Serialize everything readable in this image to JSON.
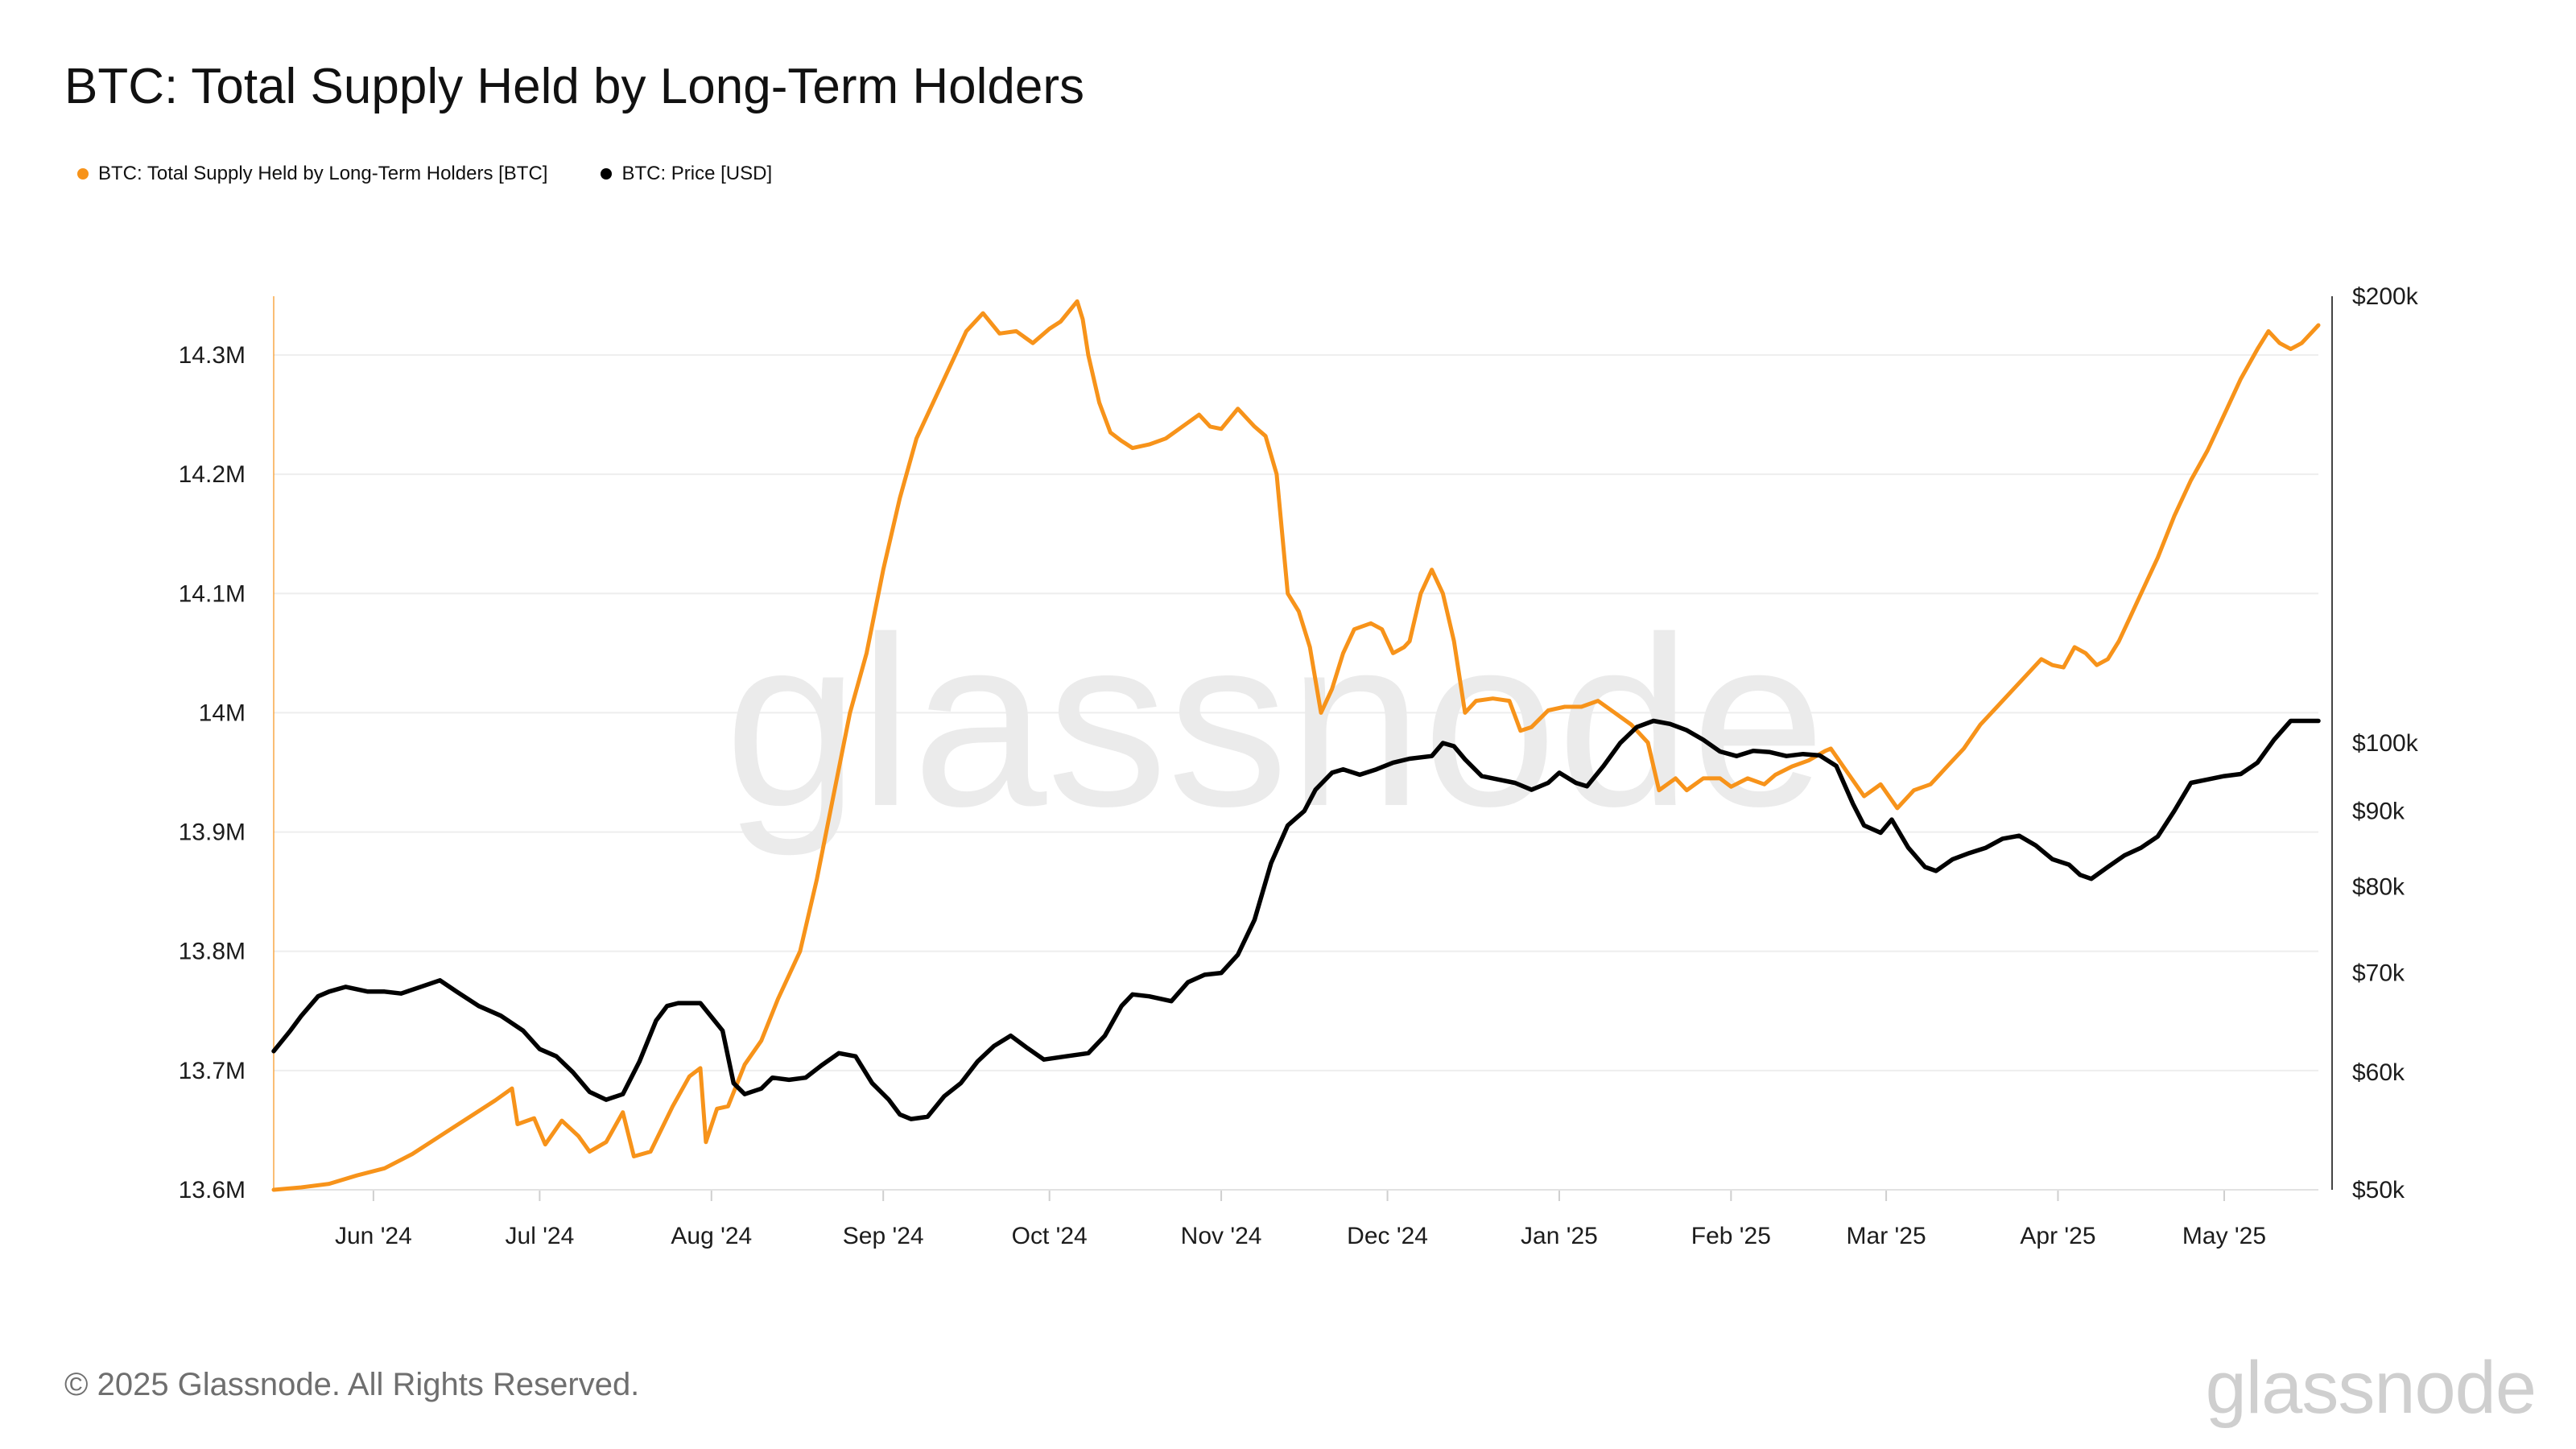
{
  "title": "BTC: Total Supply Held by Long-Term Holders",
  "legend": [
    {
      "label": "BTC: Total Supply Held by Long-Term Holders [BTC]",
      "color": "#f7931a"
    },
    {
      "label": "BTC: Price [USD]",
      "color": "#000000"
    }
  ],
  "footer": "© 2025 Glassnode. All Rights Reserved.",
  "brand": "glassnode",
  "watermark": "glassnode",
  "chart_data": {
    "type": "line",
    "x_ticks": [
      "Jun '24",
      "Jul '24",
      "Aug '24",
      "Sep '24",
      "Oct '24",
      "Nov '24",
      "Dec '24",
      "Jan '25",
      "Feb '25",
      "Mar '25",
      "Apr '25",
      "May '25"
    ],
    "x_tick_days": [
      13,
      43,
      74,
      105,
      135,
      166,
      196,
      227,
      258,
      286,
      317,
      347
    ],
    "x_range_days": [
      -5,
      364
    ],
    "y_left": {
      "ticks": [
        "13.6M",
        "13.7M",
        "13.8M",
        "13.9M",
        "14M",
        "14.1M",
        "14.2M",
        "14.3M"
      ],
      "tick_values": [
        13.6,
        13.7,
        13.8,
        13.9,
        14.0,
        14.1,
        14.2,
        14.3
      ],
      "range": [
        13.6,
        14.3
      ],
      "unit": "BTC (millions)"
    },
    "y_right": {
      "scale": "log",
      "ticks": [
        "$50k",
        "$60k",
        "$70k",
        "$80k",
        "$90k",
        "$100k",
        "$200k"
      ],
      "tick_values": [
        50,
        60,
        70,
        80,
        90,
        100,
        200
      ],
      "range": [
        50,
        200
      ],
      "unit": "USD (thousands)"
    },
    "grid": true,
    "legend_position": "top-left",
    "series": [
      {
        "name": "BTC: Total Supply Held by Long-Term Holders [BTC]",
        "color": "#f7931a",
        "axis": "left",
        "points": [
          [
            -5,
            13.6
          ],
          [
            0,
            13.602
          ],
          [
            5,
            13.605
          ],
          [
            10,
            13.612
          ],
          [
            15,
            13.618
          ],
          [
            20,
            13.63
          ],
          [
            25,
            13.645
          ],
          [
            30,
            13.66
          ],
          [
            35,
            13.675
          ],
          [
            38,
            13.685
          ],
          [
            39,
            13.655
          ],
          [
            42,
            13.66
          ],
          [
            44,
            13.638
          ],
          [
            47,
            13.658
          ],
          [
            50,
            13.645
          ],
          [
            52,
            13.632
          ],
          [
            55,
            13.64
          ],
          [
            58,
            13.665
          ],
          [
            60,
            13.628
          ],
          [
            63,
            13.632
          ],
          [
            67,
            13.67
          ],
          [
            70,
            13.695
          ],
          [
            72,
            13.702
          ],
          [
            73,
            13.64
          ],
          [
            75,
            13.668
          ],
          [
            77,
            13.67
          ],
          [
            80,
            13.705
          ],
          [
            83,
            13.725
          ],
          [
            86,
            13.76
          ],
          [
            90,
            13.8
          ],
          [
            93,
            13.86
          ],
          [
            96,
            13.93
          ],
          [
            99,
            14.0
          ],
          [
            102,
            14.05
          ],
          [
            105,
            14.12
          ],
          [
            108,
            14.18
          ],
          [
            111,
            14.23
          ],
          [
            114,
            14.26
          ],
          [
            117,
            14.29
          ],
          [
            120,
            14.32
          ],
          [
            123,
            14.335
          ],
          [
            126,
            14.318
          ],
          [
            129,
            14.32
          ],
          [
            132,
            14.31
          ],
          [
            135,
            14.322
          ],
          [
            137,
            14.328
          ],
          [
            140,
            14.345
          ],
          [
            141,
            14.33
          ],
          [
            142,
            14.3
          ],
          [
            144,
            14.26
          ],
          [
            146,
            14.235
          ],
          [
            148,
            14.228
          ],
          [
            150,
            14.222
          ],
          [
            153,
            14.225
          ],
          [
            156,
            14.23
          ],
          [
            159,
            14.24
          ],
          [
            162,
            14.25
          ],
          [
            164,
            14.24
          ],
          [
            166,
            14.238
          ],
          [
            169,
            14.255
          ],
          [
            172,
            14.24
          ],
          [
            174,
            14.232
          ],
          [
            176,
            14.2
          ],
          [
            178,
            14.1
          ],
          [
            180,
            14.085
          ],
          [
            182,
            14.055
          ],
          [
            184,
            14.0
          ],
          [
            186,
            14.02
          ],
          [
            188,
            14.05
          ],
          [
            190,
            14.07
          ],
          [
            193,
            14.075
          ],
          [
            195,
            14.07
          ],
          [
            197,
            14.05
          ],
          [
            199,
            14.055
          ],
          [
            200,
            14.06
          ],
          [
            202,
            14.1
          ],
          [
            204,
            14.12
          ],
          [
            206,
            14.1
          ],
          [
            208,
            14.06
          ],
          [
            210,
            14.0
          ],
          [
            212,
            14.01
          ],
          [
            215,
            14.012
          ],
          [
            218,
            14.01
          ],
          [
            220,
            13.985
          ],
          [
            222,
            13.988
          ],
          [
            225,
            14.002
          ],
          [
            228,
            14.005
          ],
          [
            231,
            14.005
          ],
          [
            234,
            14.01
          ],
          [
            237,
            14.0
          ],
          [
            240,
            13.99
          ],
          [
            243,
            13.975
          ],
          [
            245,
            13.935
          ],
          [
            248,
            13.945
          ],
          [
            250,
            13.935
          ],
          [
            253,
            13.945
          ],
          [
            256,
            13.945
          ],
          [
            258,
            13.938
          ],
          [
            261,
            13.945
          ],
          [
            264,
            13.94
          ],
          [
            266,
            13.948
          ],
          [
            269,
            13.955
          ],
          [
            272,
            13.96
          ],
          [
            275,
            13.968
          ],
          [
            276,
            13.97
          ],
          [
            279,
            13.95
          ],
          [
            282,
            13.93
          ],
          [
            285,
            13.94
          ],
          [
            288,
            13.92
          ],
          [
            291,
            13.935
          ],
          [
            294,
            13.94
          ],
          [
            297,
            13.955
          ],
          [
            300,
            13.97
          ],
          [
            303,
            13.99
          ],
          [
            306,
            14.005
          ],
          [
            309,
            14.02
          ],
          [
            312,
            14.035
          ],
          [
            314,
            14.045
          ],
          [
            316,
            14.04
          ],
          [
            318,
            14.038
          ],
          [
            320,
            14.055
          ],
          [
            322,
            14.05
          ],
          [
            324,
            14.04
          ],
          [
            326,
            14.045
          ],
          [
            328,
            14.06
          ],
          [
            330,
            14.08
          ],
          [
            332,
            14.1
          ],
          [
            335,
            14.13
          ],
          [
            338,
            14.165
          ],
          [
            341,
            14.195
          ],
          [
            344,
            14.22
          ],
          [
            347,
            14.25
          ],
          [
            350,
            14.28
          ],
          [
            353,
            14.305
          ],
          [
            355,
            14.32
          ],
          [
            357,
            14.31
          ],
          [
            359,
            14.305
          ],
          [
            361,
            14.31
          ],
          [
            363,
            14.32
          ],
          [
            364,
            14.325
          ]
        ]
      },
      {
        "name": "BTC: Price [USD]",
        "color": "#000000",
        "axis": "right",
        "points": [
          [
            -5,
            62
          ],
          [
            -2,
            64
          ],
          [
            0,
            65.5
          ],
          [
            3,
            67.5
          ],
          [
            5,
            68
          ],
          [
            8,
            68.5
          ],
          [
            12,
            68
          ],
          [
            15,
            68
          ],
          [
            18,
            67.8
          ],
          [
            22,
            68.6
          ],
          [
            25,
            69.2
          ],
          [
            28,
            68
          ],
          [
            32,
            66.5
          ],
          [
            36,
            65.5
          ],
          [
            40,
            64
          ],
          [
            43,
            62.2
          ],
          [
            46,
            61.5
          ],
          [
            49,
            60
          ],
          [
            52,
            58.2
          ],
          [
            55,
            57.5
          ],
          [
            58,
            58
          ],
          [
            61,
            61
          ],
          [
            64,
            65
          ],
          [
            66,
            66.5
          ],
          [
            68,
            66.8
          ],
          [
            72,
            66.8
          ],
          [
            76,
            64
          ],
          [
            78,
            59
          ],
          [
            80,
            58
          ],
          [
            83,
            58.5
          ],
          [
            85,
            59.5
          ],
          [
            88,
            59.3
          ],
          [
            91,
            59.5
          ],
          [
            94,
            60.7
          ],
          [
            97,
            61.8
          ],
          [
            100,
            61.5
          ],
          [
            103,
            59
          ],
          [
            106,
            57.5
          ],
          [
            108,
            56.2
          ],
          [
            110,
            55.8
          ],
          [
            113,
            56
          ],
          [
            116,
            57.8
          ],
          [
            119,
            59
          ],
          [
            122,
            61
          ],
          [
            125,
            62.5
          ],
          [
            128,
            63.5
          ],
          [
            131,
            62.3
          ],
          [
            134,
            61.2
          ],
          [
            138,
            61.5
          ],
          [
            142,
            61.8
          ],
          [
            145,
            63.5
          ],
          [
            148,
            66.5
          ],
          [
            150,
            67.7
          ],
          [
            153,
            67.5
          ],
          [
            157,
            67
          ],
          [
            160,
            69
          ],
          [
            163,
            69.8
          ],
          [
            166,
            70
          ],
          [
            169,
            72
          ],
          [
            172,
            76
          ],
          [
            175,
            83
          ],
          [
            178,
            88
          ],
          [
            181,
            90
          ],
          [
            183,
            93
          ],
          [
            186,
            95.5
          ],
          [
            188,
            96
          ],
          [
            191,
            95.2
          ],
          [
            194,
            96
          ],
          [
            197,
            97
          ],
          [
            200,
            97.6
          ],
          [
            204,
            98
          ],
          [
            206,
            100
          ],
          [
            208,
            99.5
          ],
          [
            210,
            97.5
          ],
          [
            213,
            95
          ],
          [
            216,
            94.5
          ],
          [
            219,
            94
          ],
          [
            222,
            93
          ],
          [
            225,
            94
          ],
          [
            227,
            95.5
          ],
          [
            230,
            94
          ],
          [
            232,
            93.5
          ],
          [
            235,
            96.5
          ],
          [
            238,
            100
          ],
          [
            241,
            102.5
          ],
          [
            244,
            103.5
          ],
          [
            247,
            103
          ],
          [
            250,
            102
          ],
          [
            253,
            100.5
          ],
          [
            256,
            98.7
          ],
          [
            259,
            98
          ],
          [
            262,
            98.8
          ],
          [
            265,
            98.6
          ],
          [
            268,
            98
          ],
          [
            271,
            98.3
          ],
          [
            274,
            98.1
          ],
          [
            277,
            96.5
          ],
          [
            280,
            91
          ],
          [
            282,
            88
          ],
          [
            285,
            87
          ],
          [
            287,
            88.8
          ],
          [
            290,
            85
          ],
          [
            293,
            82.5
          ],
          [
            295,
            82
          ],
          [
            298,
            83.5
          ],
          [
            301,
            84.3
          ],
          [
            304,
            85
          ],
          [
            307,
            86.2
          ],
          [
            310,
            86.6
          ],
          [
            313,
            85.3
          ],
          [
            316,
            83.5
          ],
          [
            319,
            82.8
          ],
          [
            321,
            81.5
          ],
          [
            323,
            81
          ],
          [
            326,
            82.5
          ],
          [
            329,
            84
          ],
          [
            332,
            85
          ],
          [
            335,
            86.5
          ],
          [
            338,
            90
          ],
          [
            341,
            94
          ],
          [
            344,
            94.5
          ],
          [
            347,
            95
          ],
          [
            350,
            95.3
          ],
          [
            353,
            97
          ],
          [
            356,
            100.5
          ],
          [
            359,
            103.5
          ],
          [
            362,
            103.5
          ],
          [
            364,
            103.5
          ]
        ]
      }
    ]
  }
}
